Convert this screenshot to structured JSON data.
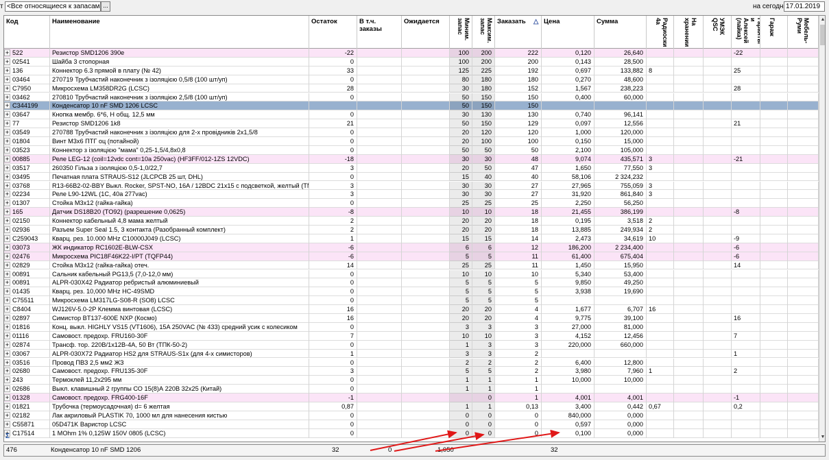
{
  "toolbar": {
    "left_char": "т",
    "filter_value": "<Все относящиеся к запасам>",
    "filter_button": "...",
    "date_label": "на сегодня",
    "date_value": "17.01.2019"
  },
  "headers": {
    "code": "Код",
    "name": "Наименование",
    "stock": "Остаток",
    "in_orders": "В т.ч. заказы",
    "expected": "Ожидается",
    "min": "Миним. запас",
    "max": "Максим. запас",
    "order": "Заказать",
    "order_sort": "△",
    "price": "Цена",
    "sum": "Сумма",
    "v1": "Радиоски 4а",
    "v2": "На хранении",
    "v3": "УМЭК QSC",
    "v4": "Гаранты и Алексей (лайка)",
    "v5": "Гараж",
    "v6": "Мебель-Руми"
  },
  "rows": [
    {
      "code": "522",
      "name": "Резистор SMD1206 390e",
      "stock": "-22",
      "min": "100",
      "max": "200",
      "order": "222",
      "price": "0,120",
      "sum": "26,640",
      "v1": "",
      "v4": "-22",
      "style": "pink"
    },
    {
      "code": "02541",
      "name": "Шайба 3 стопорная",
      "stock": "0",
      "min": "100",
      "max": "200",
      "order": "200",
      "price": "0,143",
      "sum": "28,500",
      "v1": "",
      "v4": "",
      "style": ""
    },
    {
      "code": "136",
      "name": "Коннектор 6.3 прямой в плату (№ 42)",
      "stock": "33",
      "min": "125",
      "max": "225",
      "order": "192",
      "price": "0,697",
      "sum": "133,882",
      "v1": "8",
      "v4": "25",
      "style": ""
    },
    {
      "code": "03464",
      "name": "270719 Трубчастий наконечник з ізоляцією 0,5/8 (100 шт/уп)",
      "stock": "0",
      "min": "80",
      "max": "180",
      "order": "180",
      "price": "0,270",
      "sum": "48,600",
      "v1": "",
      "v4": "",
      "style": ""
    },
    {
      "code": "C7950",
      "name": "Микросхема LM358DR2G (LCSC)",
      "stock": "28",
      "min": "30",
      "max": "180",
      "order": "152",
      "price": "1,567",
      "sum": "238,223",
      "v1": "",
      "v4": "28",
      "style": ""
    },
    {
      "code": "03462",
      "name": "270810 Трубчастий наконечник з ізоляцією 2,5/8 (100 шт/уп)",
      "stock": "0",
      "min": "50",
      "max": "150",
      "order": "150",
      "price": "0,400",
      "sum": "60,000",
      "v1": "",
      "v4": "",
      "style": ""
    },
    {
      "code": "C344199",
      "name": "Конденсатор 10 nF SMD 1206 LCSC",
      "stock": "",
      "min": "50",
      "max": "150",
      "order": "150",
      "price": "",
      "sum": "",
      "v1": "",
      "v4": "",
      "style": "sel"
    },
    {
      "code": "03647",
      "name": "Кнопка мембр. 6*6, Н общ. 12,5 мм",
      "stock": "0",
      "min": "30",
      "max": "130",
      "order": "130",
      "price": "0,740",
      "sum": "96,141",
      "v1": "",
      "v4": "",
      "style": ""
    },
    {
      "code": "77",
      "name": "Резистор SMD1206 1k8",
      "stock": "21",
      "min": "50",
      "max": "150",
      "order": "129",
      "price": "0,097",
      "sum": "12,556",
      "v1": "",
      "v4": "21",
      "style": ""
    },
    {
      "code": "03549",
      "name": "270788 Трубчастий наконечник з ізоляцією для 2-х провідників 2х1,5/8",
      "stock": "0",
      "min": "20",
      "max": "120",
      "order": "120",
      "price": "1,000",
      "sum": "120,000",
      "v1": "",
      "v4": "",
      "style": ""
    },
    {
      "code": "01804",
      "name": "Винт М3х6 ПТГ оц (потайной)",
      "stock": "0",
      "min": "20",
      "max": "100",
      "order": "100",
      "price": "0,150",
      "sum": "15,000",
      "v1": "",
      "v4": "",
      "style": ""
    },
    {
      "code": "03523",
      "name": "Коннектор з ізоляцією \"мама\" 0,25-1,5/4,8х0,8",
      "stock": "0",
      "min": "50",
      "max": "50",
      "order": "50",
      "price": "2,100",
      "sum": "105,000",
      "v1": "",
      "v4": "",
      "style": ""
    },
    {
      "code": "00885",
      "name": "Реле LEG-12 (coil=12vdc cont=10a 250vac) (HF3FF/012-1ZS 12VDC)",
      "stock": "-18",
      "min": "30",
      "max": "30",
      "order": "48",
      "price": "9,074",
      "sum": "435,571",
      "v1": "3",
      "v4": "-21",
      "style": "pink"
    },
    {
      "code": "03517",
      "name": "260350 Гільза з ізоляцією 0,5-1,0/22,7",
      "stock": "3",
      "min": "20",
      "max": "50",
      "order": "47",
      "price": "1,650",
      "sum": "77,550",
      "v1": "3",
      "v4": "",
      "style": ""
    },
    {
      "code": "03495",
      "name": "Печатная плата STRAUS-S12 (JLCPCB 25 шт, DHL)",
      "stock": "0",
      "min": "15",
      "max": "40",
      "order": "40",
      "price": "58,106",
      "sum": "2 324,232",
      "v1": "",
      "v4": "",
      "style": ""
    },
    {
      "code": "03768",
      "name": "R13-66B2-02-BBY Выкл. Rocker, SPST-NO, 16A / 12BDC 21х15 с подсветкой, желтый (TME)",
      "stock": "3",
      "min": "30",
      "max": "30",
      "order": "27",
      "price": "27,965",
      "sum": "755,059",
      "v1": "3",
      "v4": "",
      "style": ""
    },
    {
      "code": "02234",
      "name": "Реле L90-12WL (1C, 40а 277vac)",
      "stock": "3",
      "min": "30",
      "max": "30",
      "order": "27",
      "price": "31,920",
      "sum": "861,840",
      "v1": "3",
      "v4": "",
      "style": ""
    },
    {
      "code": "01307",
      "name": "Стойка М3х12 (гайка-гайка)",
      "stock": "0",
      "min": "25",
      "max": "25",
      "order": "25",
      "price": "2,250",
      "sum": "56,250",
      "v1": "",
      "v4": "",
      "style": ""
    },
    {
      "code": "165",
      "name": "Датчик DS18B20 (TO92) (разрешение 0,0625)",
      "stock": "-8",
      "min": "10",
      "max": "10",
      "order": "18",
      "price": "21,455",
      "sum": "386,199",
      "v1": "",
      "v4": "-8",
      "style": "pink"
    },
    {
      "code": "02150",
      "name": "Коннектор кабельный 4,8 мама желтый",
      "stock": "2",
      "min": "20",
      "max": "20",
      "order": "18",
      "price": "0,195",
      "sum": "3,518",
      "v1": "2",
      "v4": "",
      "style": ""
    },
    {
      "code": "02936",
      "name": "Разъем Super Seal 1.5, 3 контакта (Разобранный комплект)",
      "stock": "2",
      "min": "20",
      "max": "20",
      "order": "18",
      "price": "13,885",
      "sum": "249,934",
      "v1": "2",
      "v4": "",
      "style": ""
    },
    {
      "code": "C259043",
      "name": "Кварц. рез. 10.000 MHz C10000J049 (LCSC)",
      "stock": "1",
      "min": "15",
      "max": "15",
      "order": "14",
      "price": "2,473",
      "sum": "34,619",
      "v1": "10",
      "v4": "-9",
      "style": ""
    },
    {
      "code": "03073",
      "name": "ЖК индикатор RC1602E-BLW-CSX",
      "stock": "-6",
      "min": "6",
      "max": "6",
      "order": "12",
      "price": "186,200",
      "sum": "2 234,400",
      "v1": "",
      "v4": "-6",
      "style": "pink"
    },
    {
      "code": "02476",
      "name": "Микросхема PIC18F46K22-I/PT (TQFP44)",
      "stock": "-6",
      "min": "5",
      "max": "5",
      "order": "11",
      "price": "61,400",
      "sum": "675,404",
      "v1": "",
      "v4": "-6",
      "style": "pink"
    },
    {
      "code": "02829",
      "name": "Стойка М3х12 (гайка-гайка) отеч.",
      "stock": "14",
      "min": "25",
      "max": "25",
      "order": "11",
      "price": "1,450",
      "sum": "15,950",
      "v1": "",
      "v4": "14",
      "style": ""
    },
    {
      "code": "00891",
      "name": "Сальник кабельный PG13,5 (7,0-12,0 мм)",
      "stock": "0",
      "min": "10",
      "max": "10",
      "order": "10",
      "price": "5,340",
      "sum": "53,400",
      "v1": "",
      "v4": "",
      "style": ""
    },
    {
      "code": "00891",
      "name": "ALPR-030X42 Радиатор ребристый алюминиевый",
      "stock": "0",
      "min": "5",
      "max": "5",
      "order": "5",
      "price": "9,850",
      "sum": "49,250",
      "v1": "",
      "v4": "",
      "style": ""
    },
    {
      "code": "01435",
      "name": "Кварц. рез. 10,000 MHz HC-49SMD",
      "stock": "0",
      "min": "5",
      "max": "5",
      "order": "5",
      "price": "3,938",
      "sum": "19,690",
      "v1": "",
      "v4": "",
      "style": ""
    },
    {
      "code": "C75511",
      "name": "Микросхема LM317LG-S08-R (SO8) LCSC",
      "stock": "0",
      "min": "5",
      "max": "5",
      "order": "5",
      "price": "",
      "sum": "",
      "v1": "",
      "v4": "",
      "style": ""
    },
    {
      "code": "C8404",
      "name": "WJ126V-5.0-2P Клемма винтовая (LCSC)",
      "stock": "16",
      "min": "20",
      "max": "20",
      "order": "4",
      "price": "1,677",
      "sum": "6,707",
      "v1": "16",
      "v4": "",
      "style": ""
    },
    {
      "code": "02897",
      "name": "Симистор BT137-600E NXP (Космо)",
      "stock": "16",
      "min": "20",
      "max": "20",
      "order": "4",
      "price": "9,775",
      "sum": "39,100",
      "v1": "",
      "v4": "16",
      "style": ""
    },
    {
      "code": "01816",
      "name": "Конц. выкл. HIGHLY VS15 (VT1606), 15A 250VAC (№ 433) средний усик с колесиком",
      "stock": "0",
      "min": "3",
      "max": "3",
      "order": "3",
      "price": "27,000",
      "sum": "81,000",
      "v1": "",
      "v4": "",
      "style": ""
    },
    {
      "code": "01116",
      "name": "Самовост. предохр. FRU160-30F",
      "stock": "7",
      "min": "10",
      "max": "10",
      "order": "3",
      "price": "4,152",
      "sum": "12,456",
      "v1": "",
      "v4": "7",
      "style": ""
    },
    {
      "code": "02874",
      "name": "Трансф. тор. 220В/1х12В-4А, 50 Вт (ТПК-50-2)",
      "stock": "0",
      "min": "1",
      "max": "3",
      "order": "3",
      "price": "220,000",
      "sum": "660,000",
      "v1": "",
      "v4": "",
      "style": ""
    },
    {
      "code": "03067",
      "name": "ALPR-030X72 Радиатор HS2 для STRAUS-S1x (для 4-х симисторов)",
      "stock": "1",
      "min": "3",
      "max": "3",
      "order": "2",
      "price": "",
      "sum": "",
      "v1": "",
      "v4": "1",
      "style": ""
    },
    {
      "code": "03516",
      "name": "Провод ПВЗ 2,5 мм2 ЖЗ",
      "stock": "0",
      "min": "2",
      "max": "2",
      "order": "2",
      "price": "6,400",
      "sum": "12,800",
      "v1": "",
      "v4": "",
      "style": ""
    },
    {
      "code": "02680",
      "name": "Самовост. предохр. FRU135-30F",
      "stock": "3",
      "min": "5",
      "max": "5",
      "order": "2",
      "price": "3,980",
      "sum": "7,960",
      "v1": "1",
      "v4": "2",
      "style": ""
    },
    {
      "code": "243",
      "name": "Термоклей 11,2х295 мм",
      "stock": "0",
      "min": "1",
      "max": "1",
      "order": "1",
      "price": "10,000",
      "sum": "10,000",
      "v1": "",
      "v4": "",
      "style": ""
    },
    {
      "code": "02686",
      "name": "Выкл. клавишный 2 группы СО 15(8)А 220В 32х25 (Китай)",
      "stock": "0",
      "min": "1",
      "max": "1",
      "order": "1",
      "price": "",
      "sum": "",
      "v1": "",
      "v4": "",
      "style": ""
    },
    {
      "code": "01328",
      "name": "Самовост. предохр. FRG400-16F",
      "stock": "-1",
      "min": "",
      "max": "0",
      "order": "1",
      "price": "4,001",
      "sum": "4,001",
      "v1": "",
      "v4": "-1",
      "style": "pink"
    },
    {
      "code": "01821",
      "name": "Трубочка (термоусадочная) d= 6 желтая",
      "stock": "0,87",
      "min": "1",
      "max": "1",
      "order": "0,13",
      "price": "3,400",
      "sum": "0,442",
      "v1": "0,67",
      "v4": "0,2",
      "style": ""
    },
    {
      "code": "02182",
      "name": "Лак акриловый PLASTIK 70, 1000 мл для нанесения кистью",
      "stock": "0",
      "min": "0",
      "max": "0",
      "order": "0",
      "price": "840,000",
      "sum": "0,000",
      "v1": "",
      "v4": "",
      "style": ""
    },
    {
      "code": "C55871",
      "name": "05D471K Варистор LCSC",
      "stock": "0",
      "min": "0",
      "max": "0",
      "order": "0",
      "price": "0,597",
      "sum": "0,000",
      "v1": "",
      "v4": "",
      "style": ""
    },
    {
      "code": "C17514",
      "name": "1 MOhm 1% 0,125W 150V 0805 (LCSC)",
      "stock": "0",
      "min": "0",
      "max": "0",
      "order": "0",
      "price": "0,100",
      "sum": "0,000",
      "v1": "",
      "v4": "",
      "style": ""
    }
  ],
  "footer": {
    "count": "476",
    "name": "Конденсатор 10 nF SMD 1206",
    "stock": "32",
    "in_orders": "0",
    "expected": "1,050",
    "price": "32"
  },
  "icons": {
    "expand": "+",
    "sigma": "Σ",
    "scroll_up": "▲",
    "scroll_down": "▼"
  },
  "colors": {
    "pink_row": "#fbe4f7",
    "selected_row": "#98b1cf",
    "arrow": "#e01818"
  }
}
